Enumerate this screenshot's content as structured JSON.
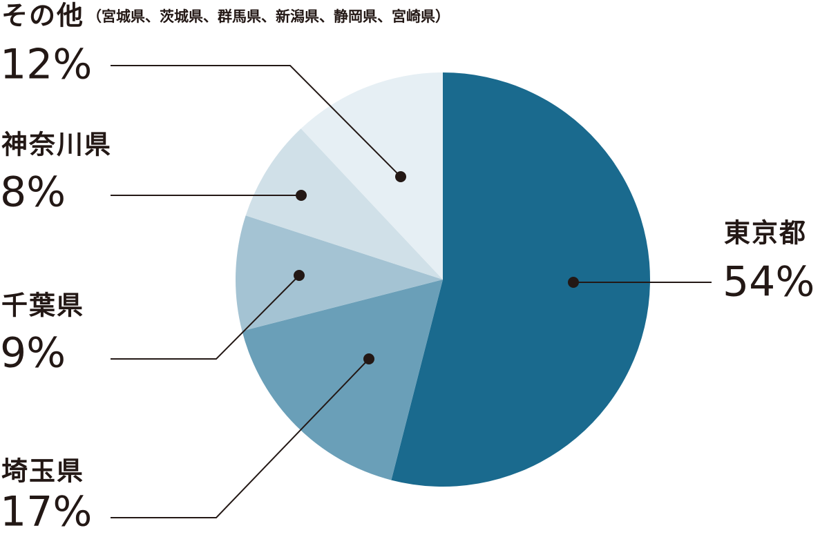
{
  "chart_data": {
    "type": "pie",
    "categories": [
      "東京都",
      "埼玉県",
      "千葉県",
      "神奈川県",
      "その他"
    ],
    "values": [
      54,
      17,
      9,
      8,
      12
    ],
    "value_labels": [
      "54%",
      "17%",
      "9%",
      "8%",
      "12%"
    ],
    "colors": [
      "#1a6a8e",
      "#6a9fb8",
      "#a4c3d3",
      "#d0e0e8",
      "#e6eff4"
    ],
    "other_detail": "（宮城県、茨城県、群馬県、新潟県、静岡県、宮崎県）"
  }
}
